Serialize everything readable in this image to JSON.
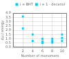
{
  "chart_data": {
    "type": "scatter",
    "xlabel": "Number of monomers",
    "ylabel": "Δμ / energy",
    "series": [
      {
        "name": "i = BHT",
        "color": "#00ccff",
        "marker": "square",
        "x": [
          2,
          4,
          6,
          8,
          10
        ],
        "values": [
          3.6,
          1.5,
          1.0,
          1.0,
          1.5
        ]
      },
      {
        "name": "i = 1 - decanol",
        "color": "#00ccff",
        "marker": "square",
        "x": [
          2,
          4,
          6,
          6,
          8,
          8,
          10,
          10
        ],
        "values": [
          2.2,
          0.75,
          0.5,
          0.7,
          0.55,
          0.75,
          0.75,
          1.1
        ]
      }
    ],
    "xlim": [
      0,
      11
    ],
    "ylim": [
      0,
      4
    ],
    "xticks": [
      2,
      4,
      6,
      8,
      10
    ],
    "yticks": [
      {
        "value": 0,
        "label": "0.0"
      },
      0.5,
      {
        "value": 1.0,
        "label": "1.0"
      },
      1.5,
      {
        "value": 2.0,
        "label": "2.0"
      },
      2.5,
      {
        "value": 3.0,
        "label": "3.0"
      },
      3.5,
      {
        "value": 4.0,
        "label": "4.0"
      }
    ],
    "grid": true,
    "legend": "upper right"
  }
}
